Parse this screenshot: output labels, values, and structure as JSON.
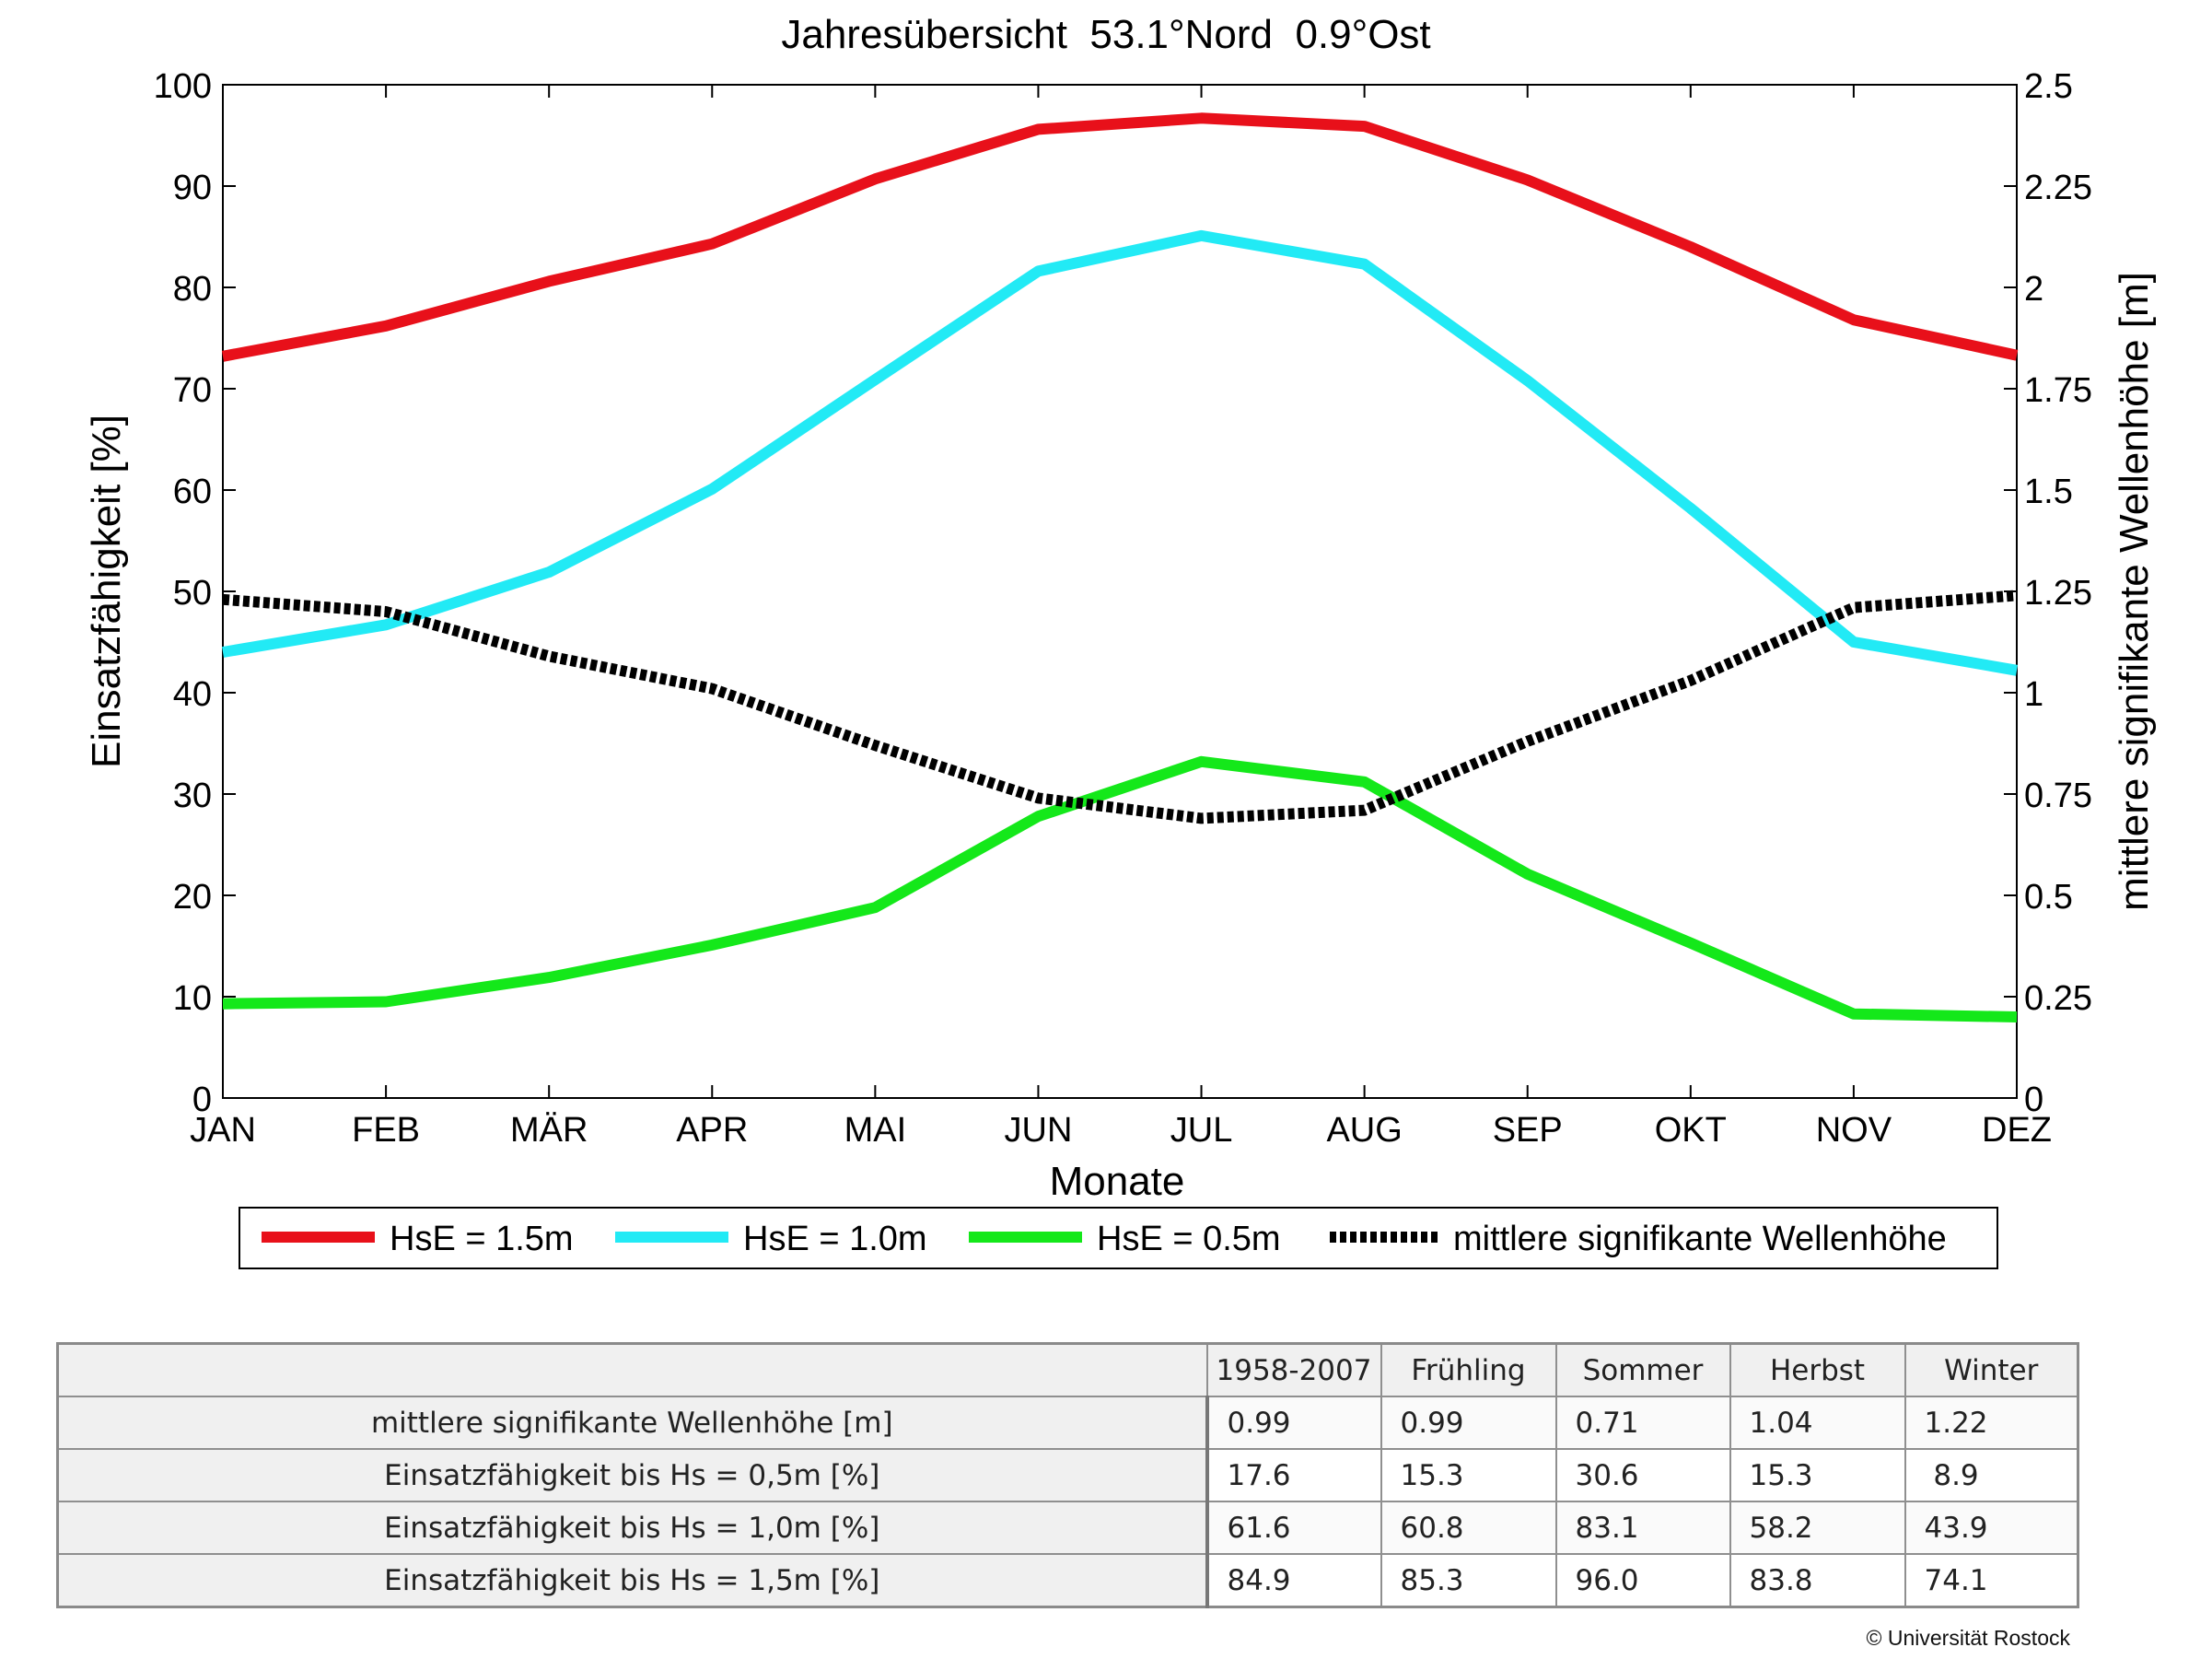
{
  "chart_data": {
    "type": "line",
    "title": "Jahresübersicht  53.1°Nord  0.9°Ost",
    "xlabel": "Monate",
    "ylabel": "Einsatzfähigkeit [%]",
    "ylabel_right": "mittlere signifikante Wellenhöhe [m]",
    "categories": [
      "JAN",
      "FEB",
      "MÄR",
      "APR",
      "MAI",
      "JUN",
      "JUL",
      "AUG",
      "SEP",
      "OKT",
      "NOV",
      "DEZ"
    ],
    "ylim": [
      0,
      100
    ],
    "yticks": [
      "0",
      "10",
      "20",
      "30",
      "40",
      "50",
      "60",
      "70",
      "80",
      "90",
      "100"
    ],
    "ylim_right": [
      0,
      2.5
    ],
    "yticks_right": [
      "0",
      "0.25",
      "0.5",
      "0.75",
      "1",
      "1.25",
      "1.5",
      "1.75",
      "2",
      "2.25",
      "2.5"
    ],
    "grid": false,
    "legend_position": "bottom",
    "series": [
      {
        "name": "HsE = 1.5m",
        "axis": "left",
        "color": "#e8101a",
        "style": "solid",
        "values": [
          73.2,
          76.2,
          80.6,
          84.3,
          90.7,
          95.6,
          96.7,
          95.9,
          90.6,
          84.0,
          76.8,
          73.3
        ]
      },
      {
        "name": "HsE = 1.0m",
        "axis": "left",
        "color": "#22eaf5",
        "style": "solid",
        "values": [
          44.0,
          46.7,
          51.9,
          60.1,
          70.9,
          81.6,
          85.1,
          82.3,
          70.8,
          58.2,
          45.0,
          42.2
        ]
      },
      {
        "name": "HsE = 0.5m",
        "axis": "left",
        "color": "#14e81a",
        "style": "solid",
        "values": [
          9.3,
          9.5,
          11.9,
          15.1,
          18.8,
          27.8,
          33.2,
          31.2,
          22.1,
          15.3,
          8.3,
          8.0
        ]
      },
      {
        "name": "mittlere signifikante Wellenhöhe",
        "axis": "right",
        "color": "#000000",
        "style": "dotted",
        "values": [
          1.23,
          1.2,
          1.09,
          1.01,
          0.87,
          0.74,
          0.69,
          0.71,
          0.88,
          1.03,
          1.21,
          1.24
        ]
      }
    ]
  },
  "table": {
    "columns": [
      "1958-2007",
      "Frühling",
      "Sommer",
      "Herbst",
      "Winter"
    ],
    "rows": [
      {
        "label": "mittlere signifikante Wellenhöhe [m]",
        "values": [
          "0.99",
          "0.99",
          "0.71",
          "1.04",
          "1.22"
        ]
      },
      {
        "label": "Einsatzfähigkeit bis Hs = 0,5m [%]",
        "values": [
          "17.6",
          "15.3",
          "30.6",
          "15.3",
          " 8.9"
        ]
      },
      {
        "label": "Einsatzfähigkeit bis Hs = 1,0m [%]",
        "values": [
          "61.6",
          "60.8",
          "83.1",
          "58.2",
          "43.9"
        ]
      },
      {
        "label": "Einsatzfähigkeit bis Hs = 1,5m [%]",
        "values": [
          "84.9",
          "85.3",
          "96.0",
          "83.8",
          "74.1"
        ]
      }
    ]
  },
  "copyright": "© Universität Rostock"
}
